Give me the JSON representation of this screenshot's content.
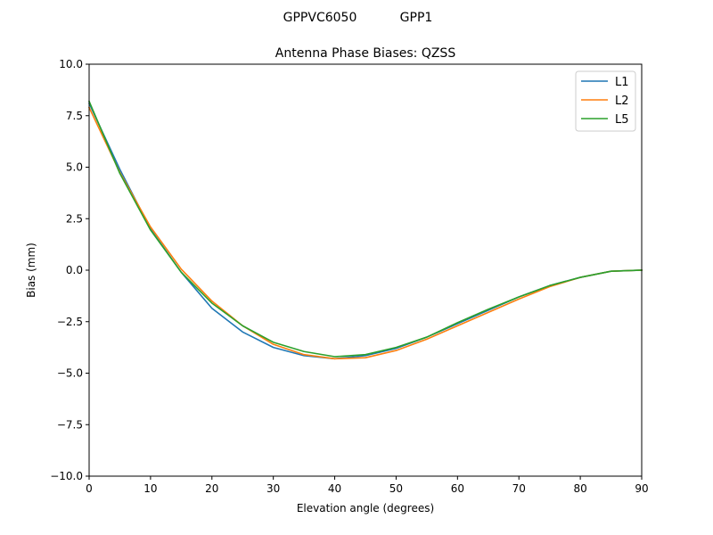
{
  "figure": {
    "suptitle_left": "GPPVC6050",
    "suptitle_right": "GPP1"
  },
  "chart_data": {
    "type": "line",
    "title": "Antenna Phase Biases: QZSS",
    "xlabel": "Elevation angle (degrees)",
    "ylabel": "Bias (mm)",
    "xlim": [
      0,
      90
    ],
    "ylim": [
      -10,
      10
    ],
    "xticks": [
      0,
      10,
      20,
      30,
      40,
      50,
      60,
      70,
      80,
      90
    ],
    "xtick_labels": [
      "0",
      "10",
      "20",
      "30",
      "40",
      "50",
      "60",
      "70",
      "80",
      "90"
    ],
    "yticks": [
      -10,
      -7.5,
      -5,
      -2.5,
      0,
      2.5,
      5,
      7.5,
      10
    ],
    "ytick_labels": [
      "−10.0",
      "−7.5",
      "−5.0",
      "−2.5",
      "0.0",
      "2.5",
      "5.0",
      "7.5",
      "10.0"
    ],
    "grid": false,
    "legend": "top-right",
    "x": [
      0,
      5,
      10,
      15,
      20,
      25,
      30,
      35,
      40,
      45,
      50,
      55,
      60,
      65,
      70,
      75,
      80,
      85,
      90
    ],
    "series": [
      {
        "name": "L1",
        "color": "#1f77b4",
        "values": [
          8.1,
          4.9,
          2.0,
          -0.1,
          -1.85,
          -3.0,
          -3.75,
          -4.15,
          -4.3,
          -4.15,
          -3.8,
          -3.25,
          -2.6,
          -1.95,
          -1.3,
          -0.75,
          -0.35,
          -0.05,
          0.0
        ]
      },
      {
        "name": "L2",
        "color": "#ff7f0e",
        "values": [
          7.9,
          4.75,
          2.1,
          0.05,
          -1.5,
          -2.7,
          -3.6,
          -4.1,
          -4.3,
          -4.25,
          -3.9,
          -3.35,
          -2.7,
          -2.05,
          -1.4,
          -0.8,
          -0.35,
          -0.05,
          0.0
        ]
      },
      {
        "name": "L5",
        "color": "#2ca02c",
        "values": [
          8.2,
          4.7,
          1.95,
          -0.1,
          -1.6,
          -2.7,
          -3.5,
          -3.95,
          -4.2,
          -4.1,
          -3.75,
          -3.25,
          -2.55,
          -1.9,
          -1.3,
          -0.75,
          -0.35,
          -0.05,
          0.0
        ]
      }
    ]
  }
}
